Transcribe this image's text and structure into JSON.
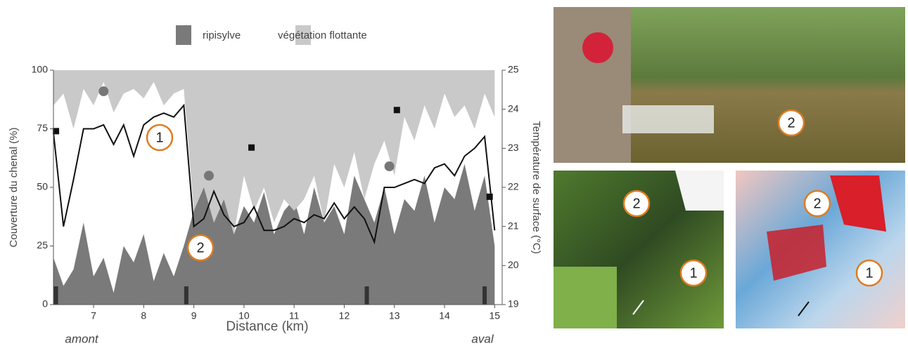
{
  "chart_data": {
    "type": "area-line",
    "x_label": "Distance (km)",
    "y_label": "Couverture du chenal (%)",
    "y2_label": "Température de surface (°C)",
    "xlim": [
      6.2,
      15.15
    ],
    "xticks": [
      7,
      8,
      9,
      10,
      11,
      12,
      13,
      14,
      15
    ],
    "ylim": [
      0,
      100
    ],
    "yticks": [
      0,
      25,
      50,
      75,
      100
    ],
    "y2lim": [
      19,
      25
    ],
    "y2ticks": [
      19,
      20,
      21,
      22,
      23,
      24,
      25
    ],
    "x": [
      6.2,
      6.4,
      6.6,
      6.8,
      7.0,
      7.2,
      7.4,
      7.6,
      7.8,
      8.0,
      8.2,
      8.4,
      8.6,
      8.8,
      9.0,
      9.2,
      9.4,
      9.6,
      9.8,
      10.0,
      10.2,
      10.4,
      10.6,
      10.8,
      11.0,
      11.2,
      11.4,
      11.6,
      11.8,
      12.0,
      12.2,
      12.4,
      12.6,
      12.8,
      13.0,
      13.2,
      13.4,
      13.6,
      13.8,
      14.0,
      14.2,
      14.4,
      14.6,
      14.8,
      15.0
    ],
    "series": [
      {
        "name": "ripisylve",
        "color": "#7a7a7a",
        "from": "bottom",
        "values": [
          20,
          8,
          15,
          35,
          12,
          20,
          5,
          25,
          18,
          30,
          10,
          22,
          12,
          25,
          40,
          55,
          35,
          45,
          30,
          42,
          35,
          48,
          30,
          40,
          45,
          30,
          50,
          35,
          42,
          30,
          55,
          45,
          35,
          50,
          30,
          45,
          40,
          55,
          35,
          50,
          45,
          60,
          40,
          55,
          25
        ]
      },
      {
        "name": "végétation flottante",
        "color": "#c9c9c9",
        "from": "top",
        "values": [
          15,
          10,
          25,
          8,
          15,
          5,
          18,
          10,
          8,
          12,
          5,
          15,
          10,
          8,
          60,
          50,
          65,
          55,
          70,
          45,
          60,
          50,
          65,
          55,
          60,
          55,
          45,
          65,
          40,
          50,
          35,
          55,
          40,
          30,
          45,
          20,
          30,
          15,
          25,
          10,
          20,
          15,
          25,
          10,
          20
        ]
      },
      {
        "color": "#111111",
        "axis": "y2",
        "values": [
          23.4,
          21.0,
          22.2,
          23.5,
          23.5,
          23.6,
          23.1,
          23.6,
          22.8,
          23.6,
          23.8,
          23.9,
          23.8,
          24.1,
          21.0,
          21.2,
          21.9,
          21.3,
          21.0,
          21.1,
          21.5,
          20.9,
          20.9,
          21.0,
          21.2,
          21.1,
          21.3,
          21.2,
          21.6,
          21.2,
          21.5,
          21.2,
          20.6,
          22.0,
          22.0,
          22.1,
          22.2,
          22.1,
          22.5,
          22.6,
          22.3,
          22.8,
          23.0,
          23.3,
          20.9
        ]
      }
    ],
    "markers": [
      {
        "shape": "square",
        "color": "#111111",
        "x": [
          6.25,
          10.15,
          13.05,
          14.9
        ],
        "values": [
          74,
          67,
          83,
          46
        ]
      },
      {
        "shape": "circle",
        "color": "#777777",
        "x": [
          7.2,
          9.3,
          12.9
        ],
        "values": [
          91,
          55,
          59
        ]
      }
    ],
    "weir_x": [
      6.25,
      8.85,
      12.45,
      14.8
    ],
    "annotations": [
      "1",
      "2"
    ],
    "upstream_label": "amont",
    "downstream_label": "aval"
  },
  "photos": [
    {
      "labels": [
        "2"
      ]
    },
    {
      "labels": [
        "2",
        "1"
      ]
    },
    {
      "labels": [
        "2",
        "1"
      ]
    }
  ]
}
